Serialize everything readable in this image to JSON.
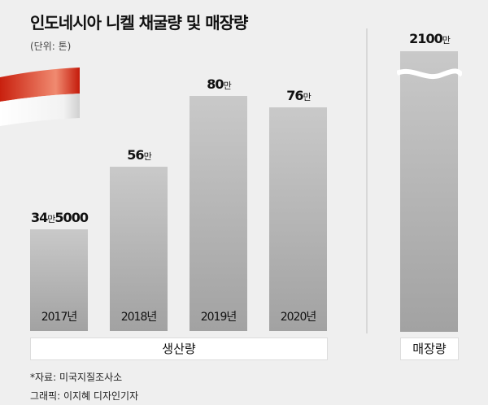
{
  "title": "인도네시아 니켈 채굴량 및 매장량",
  "unit_label": "(단위: 톤)",
  "colors": {
    "background": "#efefef",
    "bar_top": "#c9c9c9",
    "bar_bottom": "#a2a2a2",
    "flag_red": "#d9301c"
  },
  "chart_data": {
    "type": "bar",
    "title": "인도네시아 니켈 채굴량 및 매장량",
    "unit": "톤",
    "categories": [
      "2017년",
      "2018년",
      "2019년",
      "2020년"
    ],
    "values": [
      345000,
      560000,
      800000,
      760000
    ],
    "value_labels": [
      [
        "34",
        "만",
        "5000"
      ],
      [
        "56",
        "만",
        ""
      ],
      [
        "80",
        "만",
        ""
      ],
      [
        "76",
        "만",
        ""
      ]
    ],
    "group_label": "생산량",
    "reserve": {
      "value": 21000000,
      "value_label": [
        "2100",
        "만",
        ""
      ],
      "group_label": "매장량",
      "axis_break": true
    },
    "ylim": [
      0,
      800000
    ]
  },
  "footer": {
    "source": "*자료: 미국지질조사소",
    "credit": "그래픽: 이지혜 디자인기자"
  }
}
